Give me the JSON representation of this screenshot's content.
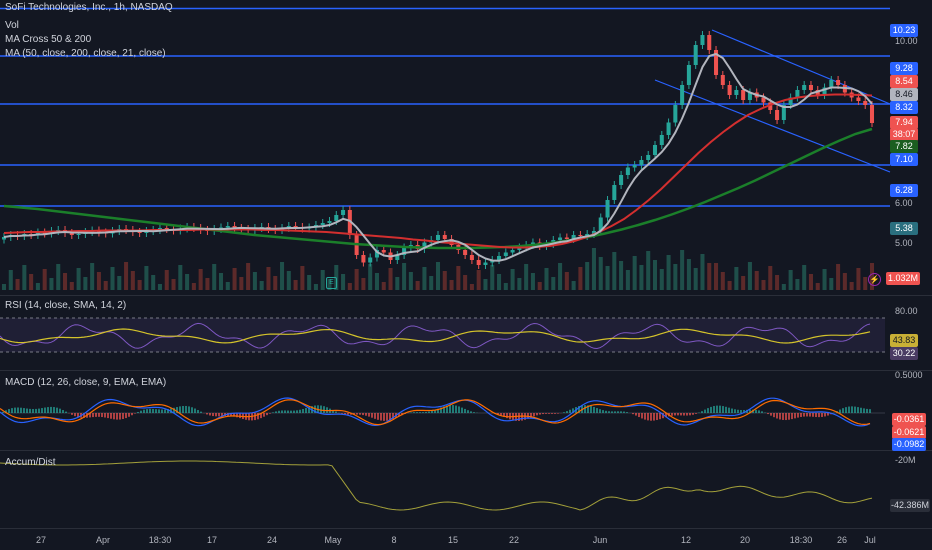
{
  "symbol_title": "SoFi Technologies, Inc., 1h, NASDAQ",
  "legends": {
    "vol": "Vol",
    "ma_cross": "MA Cross 50 & 200",
    "ma": "MA (50, close, 200, close, 21, close)",
    "rsi": "RSI (14, close, SMA, 14, 2)",
    "macd": "MACD (12, 26, close, 9, EMA, EMA)",
    "accum": "Accum/Dist"
  },
  "price_axis": {
    "ticks": [
      "10.00",
      "6.00",
      "5.00"
    ],
    "hlines": [
      {
        "label": "10.23",
        "value": 10.23
      },
      {
        "label": "9.28",
        "value": 9.28
      },
      {
        "label": "8.32",
        "value": 8.32
      },
      {
        "label": "7.10",
        "value": 7.1
      },
      {
        "label": "6.28",
        "value": 6.28
      }
    ],
    "tags": [
      {
        "label": "8.54",
        "color": "#ef5350"
      },
      {
        "label": "8.46",
        "color": "#b2b5be"
      },
      {
        "label": "7.94",
        "color": "#ef5350"
      },
      {
        "label": "38:07",
        "color": "#ef5350"
      },
      {
        "label": "7.82",
        "color": "#1b5e20"
      },
      {
        "label": "5.38",
        "color": "#2a6f7f"
      },
      {
        "label": "1.032M",
        "color": "#ef5350"
      }
    ]
  },
  "rsi_axis": {
    "ticks": [
      "80.00"
    ],
    "tags": [
      {
        "label": "43.83",
        "color": "#c9b036"
      },
      {
        "label": "30.22",
        "color": "#4a3b63"
      }
    ]
  },
  "macd_axis": {
    "ticks": [
      "0.5000",
      "-20M"
    ],
    "tags": [
      {
        "label": "-0.0361",
        "color": "#ef5350"
      },
      {
        "label": "-0.0621",
        "color": "#ef5350"
      },
      {
        "label": "-0.0982",
        "color": "#2962ff"
      }
    ]
  },
  "accum_axis": {
    "tags": [
      {
        "label": "-42.386M",
        "color": "#2a2e39"
      }
    ]
  },
  "x_axis": [
    "27",
    "Apr",
    "18:30",
    "17",
    "24",
    "May",
    "8",
    "15",
    "22",
    "Jun",
    "12",
    "20",
    "18:30",
    "26",
    "Jul"
  ],
  "icons": {
    "earnings": "E",
    "lightning": "⚡"
  },
  "chart_data": {
    "type": "line",
    "price_ylim": [
      4.6,
      10.4
    ],
    "horizontal_levels": [
      10.23,
      9.28,
      8.32,
      7.1,
      6.28
    ],
    "close": [
      5.66,
      5.7,
      5.68,
      5.72,
      5.7,
      5.75,
      5.73,
      5.78,
      5.8,
      5.74,
      5.7,
      5.72,
      5.76,
      5.79,
      5.75,
      5.73,
      5.78,
      5.82,
      5.8,
      5.76,
      5.74,
      5.78,
      5.8,
      5.84,
      5.82,
      5.79,
      5.83,
      5.86,
      5.84,
      5.8,
      5.78,
      5.82,
      5.85,
      5.88,
      5.84,
      5.82,
      5.8,
      5.84,
      5.86,
      5.82,
      5.8,
      5.84,
      5.88,
      5.86,
      5.83,
      5.85,
      5.9,
      5.94,
      5.98,
      6.1,
      6.2,
      5.7,
      5.3,
      5.15,
      5.25,
      5.4,
      5.35,
      5.2,
      5.3,
      5.45,
      5.5,
      5.42,
      5.55,
      5.6,
      5.7,
      5.62,
      5.5,
      5.4,
      5.3,
      5.2,
      5.1,
      5.15,
      5.2,
      5.28,
      5.35,
      5.4,
      5.45,
      5.5,
      5.55,
      5.48,
      5.52,
      5.6,
      5.65,
      5.62,
      5.7,
      5.68,
      5.72,
      5.78,
      6.05,
      6.4,
      6.7,
      6.9,
      7.05,
      7.1,
      7.2,
      7.3,
      7.5,
      7.7,
      7.95,
      8.3,
      8.7,
      9.1,
      9.5,
      9.7,
      9.4,
      8.9,
      8.7,
      8.5,
      8.6,
      8.4,
      8.55,
      8.45,
      8.35,
      8.2,
      8.0,
      8.3,
      8.45,
      8.6,
      8.7,
      8.6,
      8.5,
      8.65,
      8.8,
      8.7,
      8.55,
      8.45,
      8.38,
      8.3,
      7.94
    ],
    "ma50": [
      5.74,
      5.75,
      5.76,
      5.76,
      5.77,
      5.77,
      5.78,
      5.78,
      5.79,
      5.79,
      5.79,
      5.79,
      5.8,
      5.8,
      5.8,
      5.8,
      5.81,
      5.81,
      5.81,
      5.81,
      5.81,
      5.8,
      5.8,
      5.79,
      5.78,
      5.77,
      5.76,
      5.74,
      5.72,
      5.7,
      5.68,
      5.66,
      5.64,
      5.61,
      5.59,
      5.56,
      5.54,
      5.52,
      5.5,
      5.48,
      5.46,
      5.45,
      5.45,
      5.46,
      5.48,
      5.52,
      5.58,
      5.66,
      5.76,
      5.88,
      6.02,
      6.2,
      6.4,
      6.62,
      6.86,
      7.1,
      7.34,
      7.56,
      7.76,
      7.94,
      8.1,
      8.22,
      8.32,
      8.4,
      8.45,
      8.48,
      8.5,
      8.51,
      8.51,
      8.5,
      8.49
    ],
    "ma200": [
      6.28,
      6.25,
      6.22,
      6.18,
      6.14,
      6.1,
      6.06,
      6.02,
      5.98,
      5.94,
      5.9,
      5.86,
      5.82,
      5.78,
      5.74,
      5.7,
      5.67,
      5.64,
      5.61,
      5.58,
      5.55,
      5.52,
      5.5,
      5.48,
      5.46,
      5.45,
      5.44,
      5.44,
      5.44,
      5.45,
      5.46,
      5.48,
      5.51,
      5.55,
      5.6,
      5.66,
      5.73,
      5.81,
      5.9,
      6.0,
      6.11,
      6.23,
      6.36,
      6.5,
      6.64,
      6.79,
      6.95,
      7.11,
      7.27,
      7.43,
      7.58,
      7.72,
      7.82
    ]
  }
}
